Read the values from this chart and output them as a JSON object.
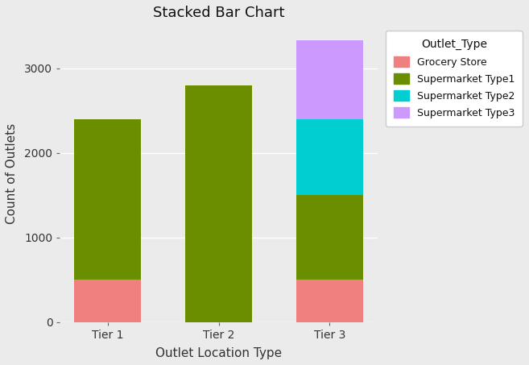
{
  "title": "Stacked Bar Chart",
  "xlabel": "Outlet Location Type",
  "ylabel": "Count of Outlets",
  "categories": [
    "Tier 1",
    "Tier 2",
    "Tier 3"
  ],
  "series": {
    "Grocery Store": [
      500,
      0,
      500
    ],
    "Supermarket Type1": [
      1900,
      2800,
      1000
    ],
    "Supermarket Type2": [
      0,
      0,
      900
    ],
    "Supermarket Type3": [
      0,
      0,
      930
    ]
  },
  "colors": {
    "Grocery Store": "#F08080",
    "Supermarket Type1": "#6B8E00",
    "Supermarket Type2": "#00CED1",
    "Supermarket Type3": "#CC99FF"
  },
  "ylim": [
    0,
    3500
  ],
  "yticks": [
    0,
    1000,
    2000,
    3000
  ],
  "plot_background_color": "#EBEBEB",
  "fig_background_color": "#EBEBEB",
  "legend_background_color": "#FFFFFF",
  "grid_color": "#FFFFFF",
  "legend_title": "Outlet_Type",
  "bar_width": 0.6,
  "title_fontsize": 13,
  "label_fontsize": 11,
  "tick_fontsize": 10,
  "legend_fontsize": 9,
  "legend_title_fontsize": 10
}
